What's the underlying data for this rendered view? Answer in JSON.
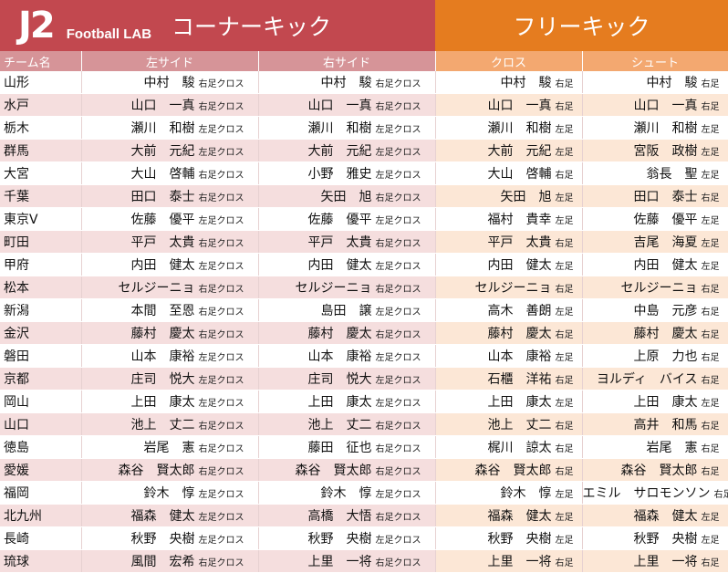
{
  "header": {
    "logo_j2": "J2",
    "logo_lab": "Football LAB",
    "corner_kick_title": "コーナーキック",
    "free_kick_title": "フリーキック"
  },
  "columns": {
    "team": "チーム名",
    "left_side": "左サイド",
    "right_side": "右サイド",
    "cross": "クロス",
    "shoot": "シュート"
  },
  "colors": {
    "corner_kick_accent": "#c2484f",
    "free_kick_accent": "#e57c1f",
    "corner_kick_header": "#d69498",
    "free_kick_header": "#f3a870"
  },
  "rows": [
    {
      "team": "山形",
      "left": "中村　駿",
      "left_tag": "右足クロス",
      "right": "中村　駿",
      "right_tag": "右足クロス",
      "cross": "中村　駿",
      "cross_tag": "右足",
      "shoot": "中村　駿",
      "shoot_tag": "右足"
    },
    {
      "team": "水戸",
      "left": "山口　一真",
      "left_tag": "右足クロス",
      "right": "山口　一真",
      "right_tag": "右足クロス",
      "cross": "山口　一真",
      "cross_tag": "右足",
      "shoot": "山口　一真",
      "shoot_tag": "右足"
    },
    {
      "team": "栃木",
      "left": "瀬川　和樹",
      "left_tag": "左足クロス",
      "right": "瀬川　和樹",
      "right_tag": "左足クロス",
      "cross": "瀬川　和樹",
      "cross_tag": "左足",
      "shoot": "瀬川　和樹",
      "shoot_tag": "左足"
    },
    {
      "team": "群馬",
      "left": "大前　元紀",
      "left_tag": "左足クロス",
      "right": "大前　元紀",
      "right_tag": "左足クロス",
      "cross": "大前　元紀",
      "cross_tag": "左足",
      "shoot": "宮阪　政樹",
      "shoot_tag": "左足"
    },
    {
      "team": "大宮",
      "left": "大山　啓輔",
      "left_tag": "右足クロス",
      "right": "小野　雅史",
      "right_tag": "左足クロス",
      "cross": "大山　啓輔",
      "cross_tag": "右足",
      "shoot": "翁長　聖",
      "shoot_tag": "左足"
    },
    {
      "team": "千葉",
      "left": "田口　泰士",
      "left_tag": "右足クロス",
      "right": "矢田　旭",
      "right_tag": "右足クロス",
      "cross": "矢田　旭",
      "cross_tag": "左足",
      "shoot": "田口　泰士",
      "shoot_tag": "右足"
    },
    {
      "team": "東京V",
      "left": "佐藤　優平",
      "left_tag": "左足クロス",
      "right": "佐藤　優平",
      "right_tag": "左足クロス",
      "cross": "福村　貴幸",
      "cross_tag": "左足",
      "shoot": "佐藤　優平",
      "shoot_tag": "左足"
    },
    {
      "team": "町田",
      "left": "平戸　太貴",
      "left_tag": "右足クロス",
      "right": "平戸　太貴",
      "right_tag": "右足クロス",
      "cross": "平戸　太貴",
      "cross_tag": "右足",
      "shoot": "吉尾　海夏",
      "shoot_tag": "左足"
    },
    {
      "team": "甲府",
      "left": "内田　健太",
      "left_tag": "左足クロス",
      "right": "内田　健太",
      "right_tag": "左足クロス",
      "cross": "内田　健太",
      "cross_tag": "左足",
      "shoot": "内田　健太",
      "shoot_tag": "左足"
    },
    {
      "team": "松本",
      "left": "セルジーニョ",
      "left_tag": "右足クロス",
      "right": "セルジーニョ",
      "right_tag": "右足クロス",
      "cross": "セルジーニョ",
      "cross_tag": "右足",
      "shoot": "セルジーニョ",
      "shoot_tag": "右足"
    },
    {
      "team": "新潟",
      "left": "本間　至恩",
      "left_tag": "右足クロス",
      "right": "島田　譲",
      "right_tag": "左足クロス",
      "cross": "高木　善朗",
      "cross_tag": "左足",
      "shoot": "中島　元彦",
      "shoot_tag": "右足"
    },
    {
      "team": "金沢",
      "left": "藤村　慶太",
      "left_tag": "右足クロス",
      "right": "藤村　慶太",
      "right_tag": "右足クロス",
      "cross": "藤村　慶太",
      "cross_tag": "右足",
      "shoot": "藤村　慶太",
      "shoot_tag": "右足"
    },
    {
      "team": "磐田",
      "left": "山本　康裕",
      "left_tag": "左足クロス",
      "right": "山本　康裕",
      "right_tag": "左足クロス",
      "cross": "山本　康裕",
      "cross_tag": "左足",
      "shoot": "上原　力也",
      "shoot_tag": "右足"
    },
    {
      "team": "京都",
      "left": "庄司　悦大",
      "left_tag": "左足クロス",
      "right": "庄司　悦大",
      "right_tag": "左足クロス",
      "cross": "石櫃　洋祐",
      "cross_tag": "右足",
      "shoot": "ヨルディ　バイス",
      "shoot_tag": "右足"
    },
    {
      "team": "岡山",
      "left": "上田　康太",
      "left_tag": "左足クロス",
      "right": "上田　康太",
      "right_tag": "左足クロス",
      "cross": "上田　康太",
      "cross_tag": "左足",
      "shoot": "上田　康太",
      "shoot_tag": "左足"
    },
    {
      "team": "山口",
      "left": "池上　丈二",
      "left_tag": "右足クロス",
      "right": "池上　丈二",
      "right_tag": "右足クロス",
      "cross": "池上　丈二",
      "cross_tag": "右足",
      "shoot": "高井　和馬",
      "shoot_tag": "右足"
    },
    {
      "team": "徳島",
      "left": "岩尾　憲",
      "left_tag": "右足クロス",
      "right": "藤田　征也",
      "right_tag": "右足クロス",
      "cross": "梶川　諒太",
      "cross_tag": "右足",
      "shoot": "岩尾　憲",
      "shoot_tag": "右足"
    },
    {
      "team": "愛媛",
      "left": "森谷　賢太郎",
      "left_tag": "右足クロス",
      "right": "森谷　賢太郎",
      "right_tag": "右足クロス",
      "cross": "森谷　賢太郎",
      "cross_tag": "右足",
      "shoot": "森谷　賢太郎",
      "shoot_tag": "右足"
    },
    {
      "team": "福岡",
      "left": "鈴木　惇",
      "left_tag": "左足クロス",
      "right": "鈴木　惇",
      "right_tag": "左足クロス",
      "cross": "鈴木　惇",
      "cross_tag": "左足",
      "shoot": "エミル　サロモンソン",
      "shoot_tag": "右足"
    },
    {
      "team": "北九州",
      "left": "福森　健太",
      "left_tag": "左足クロス",
      "right": "高橋　大悟",
      "right_tag": "右足クロス",
      "cross": "福森　健太",
      "cross_tag": "左足",
      "shoot": "福森　健太",
      "shoot_tag": "左足"
    },
    {
      "team": "長崎",
      "left": "秋野　央樹",
      "left_tag": "左足クロス",
      "right": "秋野　央樹",
      "right_tag": "左足クロス",
      "cross": "秋野　央樹",
      "cross_tag": "左足",
      "shoot": "秋野　央樹",
      "shoot_tag": "左足"
    },
    {
      "team": "琉球",
      "left": "風間　宏希",
      "left_tag": "右足クロス",
      "right": "上里　一将",
      "right_tag": "右足クロス",
      "cross": "上里　一将",
      "cross_tag": "右足",
      "shoot": "上里　一将",
      "shoot_tag": "右足"
    }
  ]
}
